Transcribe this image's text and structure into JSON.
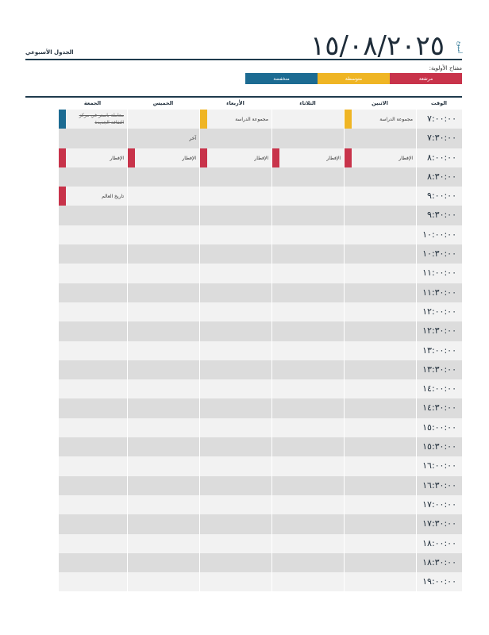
{
  "header": {
    "date": "١٥/٠٨/٢٠٢٥",
    "title": "الجدول الأسبوعي",
    "week_label": "أسبوع"
  },
  "key": {
    "label": "مفتاح الأولوية:",
    "high": "مرتفعة",
    "medium": "متوسطة",
    "low": "منخفضة"
  },
  "columns": [
    "الوقت",
    "الاثنين",
    "الثلاثاء",
    "الأربعاء",
    "الخميس",
    "الجمعة"
  ],
  "times": [
    "٧:٠٠:٠٠",
    "٧:٣٠:٠٠",
    "٨:٠٠:٠٠",
    "٨:٣٠:٠٠",
    "٩:٠٠:٠٠",
    "٩:٣٠:٠٠",
    "١٠:٠٠:٠٠",
    "١٠:٣٠:٠٠",
    "١١:٠٠:٠٠",
    "١١:٣٠:٠٠",
    "١٢:٠٠:٠٠",
    "١٢:٣٠:٠٠",
    "١٣:٠٠:٠٠",
    "١٣:٣٠:٠٠",
    "١٤:٠٠:٠٠",
    "١٤:٣٠:٠٠",
    "١٥:٠٠:٠٠",
    "١٥:٣٠:٠٠",
    "١٦:٠٠:٠٠",
    "١٦:٣٠:٠٠",
    "١٧:٠٠:٠٠",
    "١٧:٣٠:٠٠",
    "١٨:٠٠:٠٠",
    "١٨:٣٠:٠٠",
    "١٩:٠٠:٠٠"
  ],
  "events": [
    {
      "row": 0,
      "col": 1,
      "text": "مجموعة الدراسة",
      "priority": "med"
    },
    {
      "row": 0,
      "col": 3,
      "text": "مجموعة الدراسة",
      "priority": "med"
    },
    {
      "row": 0,
      "col": 5,
      "text": "معاملة باستر في مركز الثقافة الجديدة",
      "priority": "low",
      "strike": true
    },
    {
      "row": 1,
      "col": 4,
      "text": "آخر",
      "priority": ""
    },
    {
      "row": 2,
      "col": 1,
      "text": "الإفطار",
      "priority": "high"
    },
    {
      "row": 2,
      "col": 2,
      "text": "الإفطار",
      "priority": "high"
    },
    {
      "row": 2,
      "col": 3,
      "text": "الإفطار",
      "priority": "high"
    },
    {
      "row": 2,
      "col": 4,
      "text": "الإفطار",
      "priority": "high"
    },
    {
      "row": 2,
      "col": 5,
      "text": "الإفطار",
      "priority": "high"
    },
    {
      "row": 4,
      "col": 5,
      "text": "تاريخ العالم",
      "priority": "high"
    }
  ],
  "colors": {
    "high": "#c8334a",
    "medium": "#efb524",
    "low": "#1c6b92",
    "rule": "#1f3b4d"
  }
}
